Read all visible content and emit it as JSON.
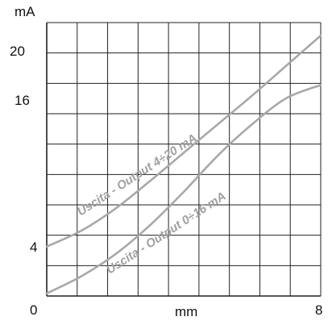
{
  "chart_data": {
    "type": "line",
    "title": "",
    "xlabel": "mm",
    "ylabel": "mA",
    "xlim": [
      0,
      8
    ],
    "ylim": [
      0,
      21
    ],
    "grid": true,
    "x_tick_labels": [
      "0",
      "8"
    ],
    "y_tick_labels": [
      "4",
      "16",
      "20"
    ],
    "series": [
      {
        "name": "Uscita - Output 4÷20 mA",
        "x": [
          0,
          1,
          2,
          3,
          4,
          5,
          6,
          7,
          8
        ],
        "y": [
          3.8,
          5.0,
          6.7,
          8.8,
          11.0,
          13.2,
          15.4,
          17.7,
          20.0
        ]
      },
      {
        "name": "Uscita - Output 0÷16 mA",
        "x": [
          0,
          1,
          2,
          3,
          4,
          5,
          6,
          7,
          8
        ],
        "y": [
          0.2,
          1.5,
          3.2,
          5.4,
          8.0,
          10.8,
          13.2,
          15.2,
          16.2
        ]
      }
    ],
    "colors": {
      "grid": "#222222",
      "curve": "#a8a8a8"
    }
  }
}
